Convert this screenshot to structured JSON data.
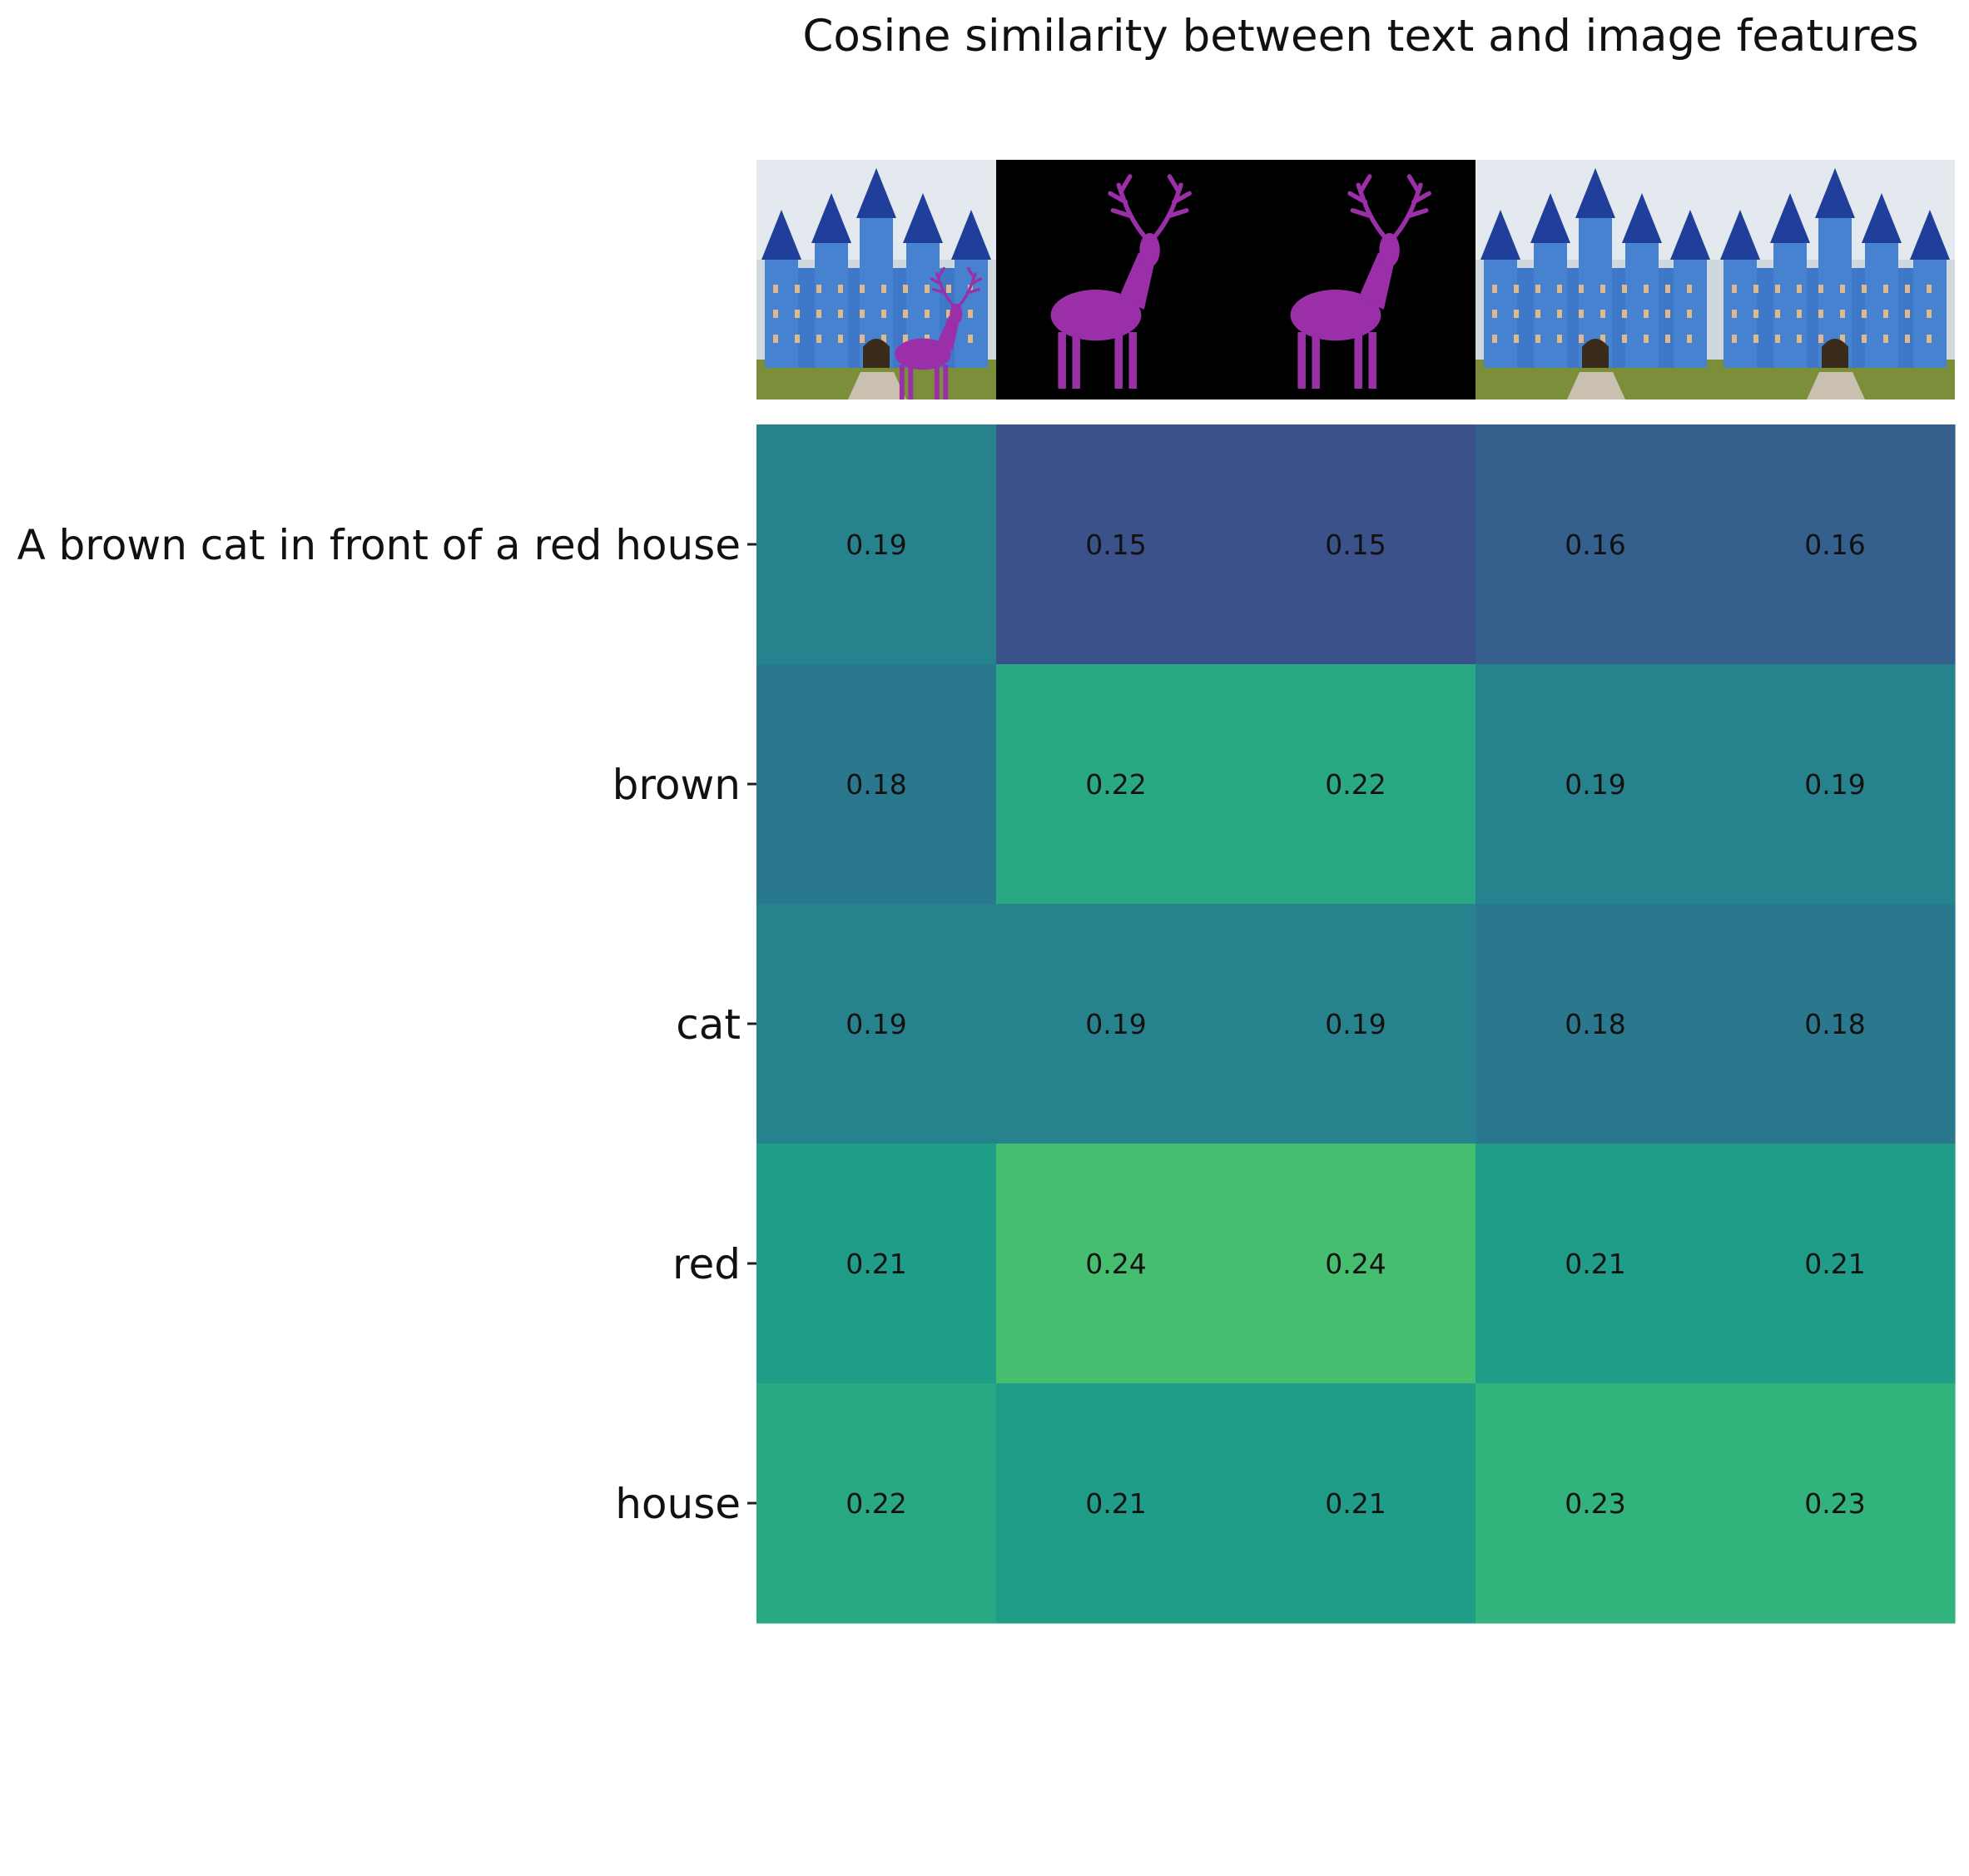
{
  "chart_data": {
    "type": "heatmap",
    "title": "Cosine similarity between text and image features",
    "rows": [
      "A brown cat in front of a red house",
      "brown",
      "cat",
      "red",
      "house"
    ],
    "columns": [
      "castle with purple deer",
      "purple deer on black",
      "purple deer on black",
      "blue castle",
      "blue castle"
    ],
    "values": [
      [
        0.19,
        0.15,
        0.15,
        0.16,
        0.16
      ],
      [
        0.18,
        0.22,
        0.22,
        0.19,
        0.19
      ],
      [
        0.19,
        0.19,
        0.19,
        0.18,
        0.18
      ],
      [
        0.21,
        0.24,
        0.24,
        0.21,
        0.21
      ],
      [
        0.22,
        0.21,
        0.21,
        0.23,
        0.23
      ]
    ],
    "colormap": "viridis",
    "color_range": [
      0.1,
      0.3
    ],
    "xlabel": "",
    "ylabel": ""
  }
}
